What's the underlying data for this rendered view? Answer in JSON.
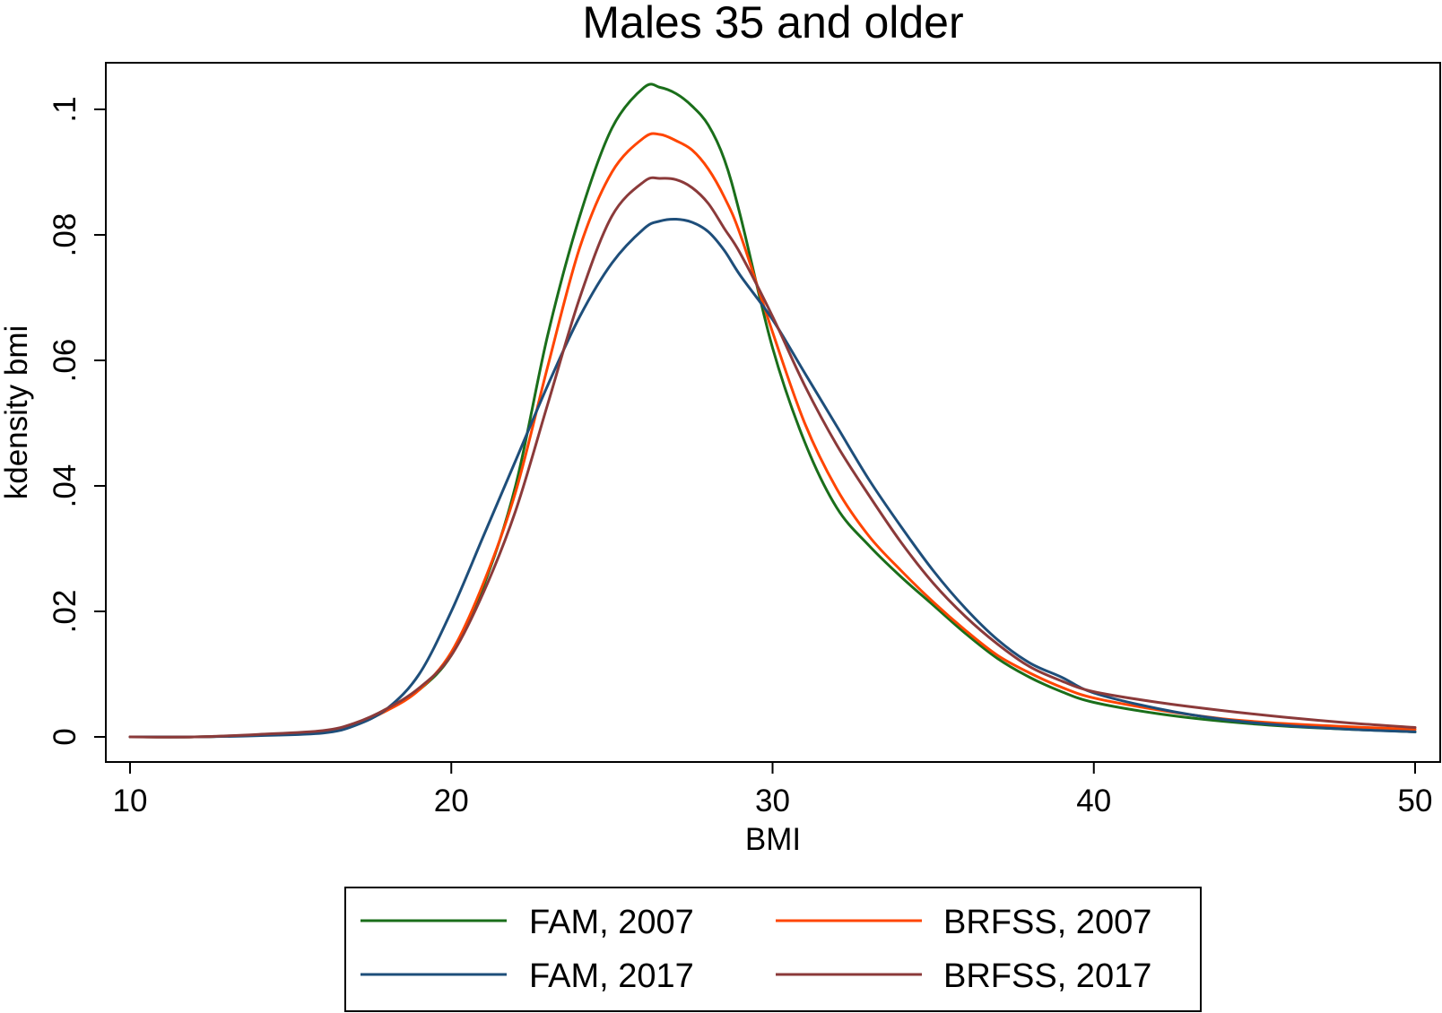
{
  "chart_data": {
    "type": "line",
    "title": "Males 35 and older",
    "xlabel": "BMI",
    "ylabel": "kdensity bmi",
    "xlim": [
      10,
      50
    ],
    "ylim": [
      0,
      0.1
    ],
    "x_ticks": [
      {
        "value": 10,
        "label": "10"
      },
      {
        "value": 20,
        "label": "20"
      },
      {
        "value": 30,
        "label": "30"
      },
      {
        "value": 40,
        "label": "40"
      },
      {
        "value": 50,
        "label": "50"
      }
    ],
    "y_ticks": [
      {
        "value": 0,
        "label": "0"
      },
      {
        "value": 0.02,
        "label": ".02"
      },
      {
        "value": 0.04,
        "label": ".04"
      },
      {
        "value": 0.06,
        "label": ".06"
      },
      {
        "value": 0.08,
        "label": ".08"
      },
      {
        "value": 0.1,
        "label": ".1"
      }
    ],
    "grid": false,
    "legend_position": "bottom",
    "x": [
      10,
      12,
      14,
      16,
      17,
      18,
      19,
      20,
      21,
      22,
      23,
      24,
      25,
      26,
      26.5,
      27,
      27.5,
      28,
      28.5,
      29,
      30,
      31,
      32,
      33,
      34,
      35,
      36,
      37,
      38,
      39,
      40,
      42,
      44,
      46,
      48,
      50
    ],
    "series": [
      {
        "name": "FAM, 2007",
        "color": "#1a6e1a",
        "values": [
          0,
          0,
          0.0003,
          0.0008,
          0.002,
          0.0045,
          0.0075,
          0.013,
          0.024,
          0.04,
          0.064,
          0.083,
          0.097,
          0.1035,
          0.1035,
          0.1025,
          0.1005,
          0.0975,
          0.092,
          0.083,
          0.062,
          0.047,
          0.0365,
          0.0305,
          0.0255,
          0.021,
          0.0165,
          0.0125,
          0.0095,
          0.0072,
          0.0055,
          0.0037,
          0.0025,
          0.0017,
          0.0012,
          0.0008
        ]
      },
      {
        "name": "BRFSS, 2007",
        "color": "#ff4500",
        "values": [
          0,
          0,
          0.0003,
          0.0008,
          0.002,
          0.0042,
          0.0075,
          0.0135,
          0.0245,
          0.039,
          0.059,
          0.078,
          0.09,
          0.0955,
          0.096,
          0.095,
          0.0935,
          0.0905,
          0.086,
          0.08,
          0.0645,
          0.05,
          0.0395,
          0.032,
          0.0265,
          0.0215,
          0.017,
          0.013,
          0.0102,
          0.0079,
          0.0062,
          0.0043,
          0.0029,
          0.0021,
          0.0016,
          0.0012
        ]
      },
      {
        "name": "FAM, 2017",
        "color": "#1e4e7a",
        "values": [
          0,
          0,
          0.0002,
          0.0006,
          0.0018,
          0.0045,
          0.01,
          0.02,
          0.032,
          0.044,
          0.056,
          0.067,
          0.0755,
          0.081,
          0.0822,
          0.0825,
          0.082,
          0.0805,
          0.0775,
          0.0735,
          0.0665,
          0.058,
          0.0495,
          0.041,
          0.0335,
          0.0265,
          0.0205,
          0.0155,
          0.0118,
          0.0095,
          0.007,
          0.0045,
          0.0028,
          0.0018,
          0.0012,
          0.0008
        ]
      },
      {
        "name": "BRFSS, 2017",
        "color": "#8b3a3a",
        "values": [
          0,
          0,
          0.0004,
          0.001,
          0.0022,
          0.0045,
          0.0078,
          0.013,
          0.023,
          0.036,
          0.053,
          0.07,
          0.083,
          0.0885,
          0.089,
          0.0888,
          0.0875,
          0.085,
          0.081,
          0.077,
          0.067,
          0.056,
          0.0465,
          0.0385,
          0.031,
          0.0245,
          0.0192,
          0.0148,
          0.0112,
          0.0089,
          0.0072,
          0.0055,
          0.0042,
          0.0031,
          0.0022,
          0.0015
        ]
      }
    ],
    "legend": [
      {
        "label": "FAM, 2007",
        "color": "#1a6e1a"
      },
      {
        "label": "BRFSS, 2007",
        "color": "#ff4500"
      },
      {
        "label": "FAM, 2017",
        "color": "#1e4e7a"
      },
      {
        "label": "BRFSS, 2017",
        "color": "#8b3a3a"
      }
    ]
  }
}
